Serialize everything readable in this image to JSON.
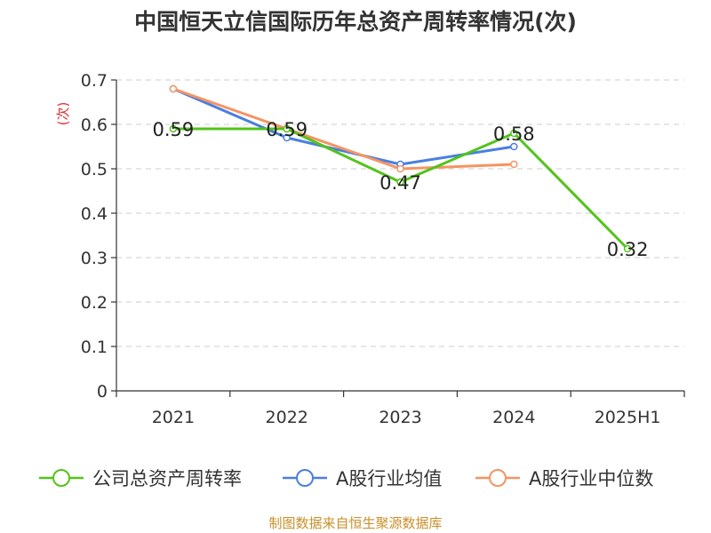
{
  "chart_data": {
    "type": "line",
    "title": "中国恒天立信国际历年总资产周转率情况(次)",
    "ylabel": "(次)",
    "xlabel": "",
    "categories": [
      "2021",
      "2022",
      "2023",
      "2024",
      "2025H1"
    ],
    "ylim": [
      0,
      0.7
    ],
    "yticks": [
      0,
      0.1,
      0.2,
      0.3,
      0.4,
      0.5,
      0.6,
      0.7
    ],
    "ytick_labels": [
      "0",
      "0.1",
      "0.2",
      "0.3",
      "0.4",
      "0.5",
      "0.6",
      "0.7"
    ],
    "grid": true,
    "legend_position": "bottom",
    "series": [
      {
        "name": "公司总资产周转率",
        "color": "#52c41a",
        "values": [
          0.59,
          0.59,
          0.47,
          0.58,
          0.32
        ],
        "labels": [
          "0.59",
          "0.59",
          "0.47",
          "0.58",
          "0.32"
        ]
      },
      {
        "name": "A股行业均值",
        "color": "#4a7fe0",
        "values": [
          0.68,
          0.57,
          0.51,
          0.55,
          null
        ]
      },
      {
        "name": "A股行业中位数",
        "color": "#f59462",
        "values": [
          0.68,
          0.59,
          0.5,
          0.51,
          null
        ]
      }
    ]
  },
  "source": "制图数据来自恒生聚源数据库"
}
